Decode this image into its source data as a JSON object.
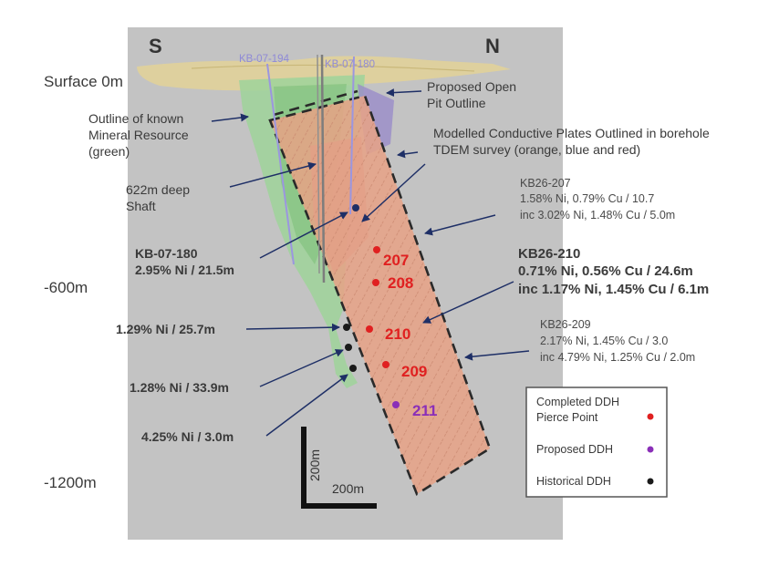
{
  "orientation": {
    "south": "S",
    "north": "N"
  },
  "depth_labels": {
    "surface": "Surface 0m",
    "mid": "-600m",
    "deep": "-1200m"
  },
  "drillholes": {
    "kb07194": "KB-07-194",
    "kb07180": "KB-07-180"
  },
  "annotations": {
    "pit_outline": [
      "Proposed Open",
      "Pit Outline"
    ],
    "resource_outline": [
      "Outline of known",
      "Mineral Resource",
      "(green)"
    ],
    "conductive_plates": [
      "Modelled Conductive Plates Outlined in borehole",
      "TDEM survey (orange, blue and red)"
    ],
    "shaft": [
      "622m deep",
      "Shaft"
    ]
  },
  "intercepts": {
    "kb26_207": [
      "KB26-207",
      "1.58% Ni, 0.79% Cu / 10.7",
      "inc 3.02% Ni, 1.48% Cu / 5.0m"
    ],
    "kb26_210": [
      "KB26-210",
      "0.71% Ni, 0.56% Cu / 24.6m",
      "inc 1.17% Ni, 1.45% Cu / 6.1m"
    ],
    "kb26_209": [
      "KB26-209",
      "2.17% Ni, 1.45% Cu / 3.0",
      "inc 4.79% Ni, 1.25% Cu / 2.0m"
    ],
    "kb07_180": [
      "KB-07-180",
      "2.95% Ni / 21.5m"
    ],
    "hist1": "1.29% Ni / 25.7m",
    "hist2": "1.28% Ni / 33.9m",
    "hist3": "4.25% Ni / 3.0m"
  },
  "pierce_points": {
    "p207": "207",
    "p208": "208",
    "p210": "210",
    "p209": "209",
    "p211": "211"
  },
  "scale_bar": {
    "vertical": "200m",
    "horizontal": "200m"
  },
  "legend": {
    "completed": [
      "Completed DDH",
      "Pierce Point"
    ],
    "proposed": "Proposed DDH",
    "historical": "Historical DDH"
  },
  "colors": {
    "completed": "#e02020",
    "proposed": "#8a2fb8",
    "historical": "#1a1a1a",
    "arrow": "#1e2f66"
  }
}
